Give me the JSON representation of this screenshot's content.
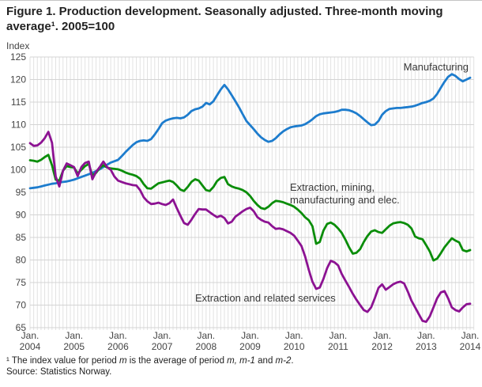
{
  "header": {
    "title_line1": "Figure 1. Production development. Seasonally adjusted. Three-month moving",
    "title_line2": "average¹. 2005=100"
  },
  "annotations": {
    "manufacturing": "Manufacturing",
    "extraction_mining_line1": "Extraction, mining,",
    "extraction_mining_line2": "manufacturing and elec.",
    "extraction_services": "Extraction and related services"
  },
  "footer": {
    "footnote_segments": [
      {
        "text": "¹ The index value for period ",
        "italic": false
      },
      {
        "text": "m",
        "italic": true
      },
      {
        "text": " is the average of period ",
        "italic": false
      },
      {
        "text": "m, m-1",
        "italic": true
      },
      {
        "text": " and ",
        "italic": false
      },
      {
        "text": "m-2",
        "italic": true
      },
      {
        "text": ".",
        "italic": false
      }
    ],
    "source": "Source: Statistics Norway."
  },
  "chart_data": {
    "type": "line",
    "title": "Figure 1. Production development. Seasonally adjusted. Three-month moving average¹. 2005=100",
    "ylabel": "Index",
    "xlabel": "",
    "ylim": [
      65,
      125
    ],
    "y_ticks": [
      65,
      70,
      75,
      80,
      85,
      90,
      95,
      100,
      105,
      110,
      115,
      120,
      125
    ],
    "x_frequency": "monthly",
    "x_range": [
      "Jan 2004",
      "Jan 2014"
    ],
    "x_tick_month_label": "Jan.",
    "x_tick_years": [
      "2004",
      "2005",
      "2006",
      "2007",
      "2008",
      "2009",
      "2010",
      "2011",
      "2012",
      "2013",
      "2014"
    ],
    "grid": {
      "vertical": "every month",
      "horizontal": "every 5 index points"
    },
    "legend_position": "inline annotations",
    "colors": {
      "manufacturing": "#1d7ccd",
      "extraction_mining": "#0a8d09",
      "extraction_services": "#8c1292",
      "gridline_vertical": "#e2e2e2",
      "gridline_horizontal": "#d4d4d4"
    },
    "series": [
      {
        "key": "manufacturing",
        "name": "Manufacturing",
        "color": "#1d7ccd",
        "values": [
          95.9,
          96.0,
          96.1,
          96.3,
          96.5,
          96.7,
          96.9,
          97.0,
          97.2,
          97.3,
          97.4,
          97.6,
          97.8,
          98.1,
          98.4,
          98.7,
          99.0,
          99.3,
          99.7,
          100.1,
          100.6,
          101.1,
          101.6,
          101.9,
          102.2,
          103.0,
          103.9,
          104.7,
          105.5,
          106.1,
          106.4,
          106.5,
          106.4,
          106.8,
          107.8,
          109.0,
          110.3,
          110.9,
          111.2,
          111.4,
          111.5,
          111.4,
          111.6,
          112.2,
          113.0,
          113.4,
          113.6,
          114.0,
          114.8,
          114.5,
          115.2,
          116.5,
          117.8,
          118.8,
          117.8,
          116.5,
          115.2,
          113.8,
          112.3,
          110.8,
          109.9,
          109.0,
          108.0,
          107.2,
          106.6,
          106.2,
          106.4,
          107.0,
          107.8,
          108.5,
          109.0,
          109.4,
          109.6,
          109.7,
          109.8,
          110.1,
          110.6,
          111.2,
          111.9,
          112.3,
          112.5,
          112.6,
          112.7,
          112.8,
          113.0,
          113.3,
          113.3,
          113.2,
          112.9,
          112.5,
          111.9,
          111.2,
          110.5,
          109.9,
          110.0,
          110.8,
          112.2,
          113.0,
          113.5,
          113.6,
          113.7,
          113.7,
          113.8,
          113.9,
          114.0,
          114.2,
          114.5,
          114.8,
          115.0,
          115.3,
          115.8,
          116.8,
          118.2,
          119.5,
          120.6,
          121.2,
          120.8,
          120.1,
          119.6,
          120.0,
          120.4
        ]
      },
      {
        "key": "extraction-mining-manufacturing-elec",
        "name": "Extraction, mining, manufacturing and elec.",
        "color": "#0a8d09",
        "values": [
          102.1,
          102.0,
          101.8,
          102.2,
          102.8,
          103.3,
          101.0,
          97.8,
          97.6,
          99.8,
          100.8,
          100.6,
          100.5,
          99.2,
          100.0,
          100.8,
          101.3,
          98.7,
          99.3,
          100.4,
          101.0,
          100.5,
          100.3,
          100.2,
          100.1,
          99.8,
          99.4,
          99.1,
          98.9,
          98.6,
          98.0,
          96.8,
          95.9,
          95.8,
          96.4,
          97.0,
          97.2,
          97.4,
          97.6,
          97.3,
          96.5,
          95.6,
          95.3,
          96.2,
          97.3,
          97.9,
          97.6,
          96.5,
          95.5,
          95.3,
          96.2,
          97.5,
          98.2,
          98.4,
          96.8,
          96.3,
          96.0,
          95.8,
          95.5,
          95.0,
          94.2,
          93.1,
          92.2,
          91.5,
          91.3,
          91.8,
          92.6,
          93.1,
          93.0,
          92.8,
          92.5,
          92.2,
          91.8,
          91.2,
          90.4,
          89.5,
          88.8,
          87.5,
          83.6,
          84.0,
          86.5,
          88.0,
          88.3,
          87.8,
          87.0,
          86.0,
          84.5,
          82.8,
          81.4,
          81.6,
          82.4,
          84.0,
          85.3,
          86.3,
          86.6,
          86.2,
          86.0,
          86.8,
          87.6,
          88.1,
          88.3,
          88.4,
          88.2,
          87.8,
          87.0,
          85.2,
          84.8,
          84.6,
          83.3,
          81.9,
          79.9,
          80.3,
          81.5,
          82.8,
          83.8,
          84.8,
          84.3,
          83.9,
          82.2,
          81.9,
          82.2
        ]
      },
      {
        "key": "extraction-and-related-services",
        "name": "Extraction and related services",
        "color": "#8c1292",
        "values": [
          105.9,
          105.3,
          105.4,
          106.0,
          107.0,
          108.4,
          106.0,
          98.5,
          96.3,
          99.8,
          101.4,
          101.0,
          100.6,
          98.6,
          100.6,
          101.5,
          101.8,
          97.9,
          99.5,
          100.6,
          101.8,
          100.6,
          100.0,
          98.5,
          97.6,
          97.3,
          97.0,
          96.8,
          96.6,
          96.5,
          95.5,
          93.9,
          93.0,
          92.4,
          92.5,
          92.7,
          92.4,
          92.2,
          92.6,
          93.4,
          91.5,
          89.8,
          88.2,
          87.8,
          88.9,
          90.2,
          91.3,
          91.2,
          91.2,
          90.6,
          90.0,
          89.5,
          89.8,
          89.3,
          88.1,
          88.5,
          89.6,
          90.2,
          90.8,
          91.3,
          91.6,
          90.8,
          89.5,
          88.9,
          88.5,
          88.3,
          87.5,
          86.9,
          87.0,
          86.8,
          86.4,
          86.0,
          85.4,
          84.3,
          83.1,
          80.8,
          77.8,
          75.2,
          73.6,
          73.9,
          75.8,
          78.2,
          79.8,
          79.5,
          78.8,
          76.9,
          75.4,
          74.0,
          72.5,
          71.2,
          70.0,
          68.9,
          68.5,
          69.5,
          71.5,
          73.8,
          74.6,
          73.4,
          74.0,
          74.6,
          75.0,
          75.2,
          74.8,
          73.0,
          71.0,
          69.5,
          68.0,
          66.5,
          66.3,
          67.5,
          69.5,
          71.5,
          72.8,
          73.1,
          71.5,
          69.5,
          68.9,
          68.6,
          69.5,
          70.2,
          70.3
        ]
      }
    ]
  }
}
